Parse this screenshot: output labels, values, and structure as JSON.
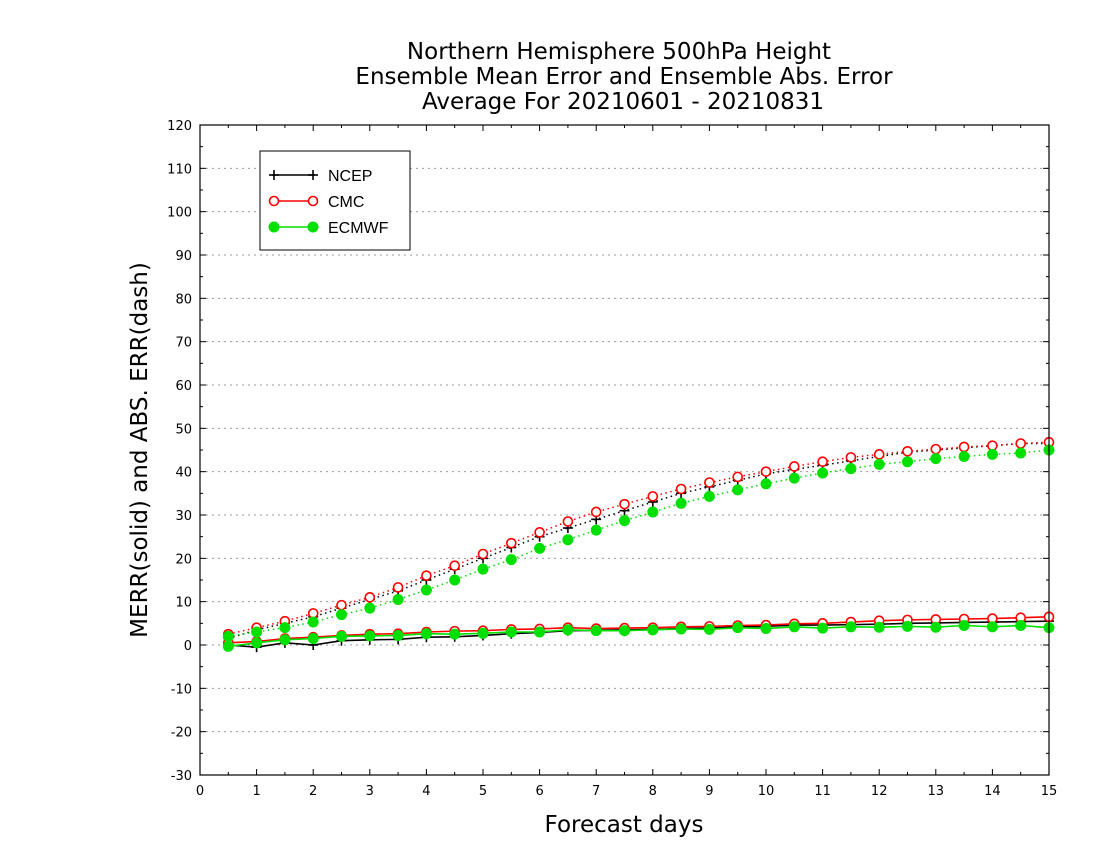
{
  "chart_data": {
    "type": "line",
    "title": [
      "Northern Hemisphere 500hPa Height",
      "Ensemble Mean Error and Ensemble Abs. Error",
      "Average For 20210601 - 20210831"
    ],
    "xlabel": "Forecast days",
    "ylabel": "MERR(solid) and ABS. ERR(dash)",
    "xlim": [
      0,
      15
    ],
    "ylim": [
      -30,
      120
    ],
    "xticks": [
      0,
      1,
      2,
      3,
      4,
      5,
      6,
      7,
      8,
      9,
      10,
      11,
      12,
      13,
      14,
      15
    ],
    "yticks": [
      -30,
      -20,
      -10,
      0,
      10,
      20,
      30,
      40,
      50,
      60,
      70,
      80,
      90,
      100,
      110,
      120
    ],
    "grid": "horizontal dotted",
    "legend_position": "top-left",
    "x": [
      0.5,
      1,
      1.5,
      2,
      2.5,
      3,
      3.5,
      4,
      4.5,
      5,
      5.5,
      6,
      6.5,
      7,
      7.5,
      8,
      8.5,
      9,
      9.5,
      10,
      10.5,
      11,
      11.5,
      12,
      12.5,
      13,
      13.5,
      14,
      14.5,
      15
    ],
    "series": [
      {
        "name": "NCEP",
        "color": "#000000",
        "marker": "plus",
        "merr": [
          0.0,
          -0.5,
          0.5,
          0.0,
          1.0,
          1.2,
          1.3,
          1.8,
          1.9,
          2.2,
          2.6,
          2.9,
          3.3,
          3.4,
          3.5,
          3.6,
          3.8,
          3.9,
          4.2,
          4.3,
          4.6,
          4.6,
          4.7,
          4.8,
          5.0,
          5.1,
          5.2,
          5.3,
          5.4,
          5.5
        ],
        "abs_err": [
          1.5,
          3.5,
          5.0,
          6.5,
          8.5,
          10.5,
          12.5,
          15.0,
          17.5,
          20.0,
          22.5,
          25.0,
          27.0,
          29.0,
          31.0,
          33.0,
          35.0,
          36.5,
          38.0,
          39.5,
          40.5,
          41.5,
          42.5,
          43.5,
          44.5,
          45.0,
          45.5,
          46.0,
          46.5,
          46.5
        ]
      },
      {
        "name": "CMC",
        "color": "#ff0000",
        "marker": "open-circle",
        "merr": [
          0.5,
          0.8,
          1.5,
          1.8,
          2.2,
          2.5,
          2.6,
          3.0,
          3.2,
          3.3,
          3.6,
          3.7,
          4.0,
          3.8,
          3.9,
          4.0,
          4.2,
          4.3,
          4.5,
          4.6,
          4.9,
          5.0,
          5.3,
          5.6,
          5.8,
          5.9,
          6.0,
          6.1,
          6.3,
          6.5
        ],
        "abs_err": [
          2.5,
          4.0,
          5.5,
          7.3,
          9.2,
          11.0,
          13.3,
          16.0,
          18.3,
          21.0,
          23.5,
          26.0,
          28.5,
          30.7,
          32.5,
          34.3,
          36.0,
          37.5,
          38.8,
          40.0,
          41.2,
          42.3,
          43.3,
          44.0,
          44.7,
          45.2,
          45.7,
          46.0,
          46.5,
          46.8
        ]
      },
      {
        "name": "ECMWF",
        "color": "#00e000",
        "marker": "filled-circle",
        "merr": [
          -0.3,
          0.5,
          1.2,
          1.5,
          2.0,
          2.1,
          2.2,
          2.6,
          2.5,
          2.7,
          3.0,
          3.0,
          3.5,
          3.3,
          3.3,
          3.5,
          3.7,
          3.6,
          4.0,
          3.8,
          4.2,
          3.9,
          4.2,
          4.1,
          4.3,
          4.1,
          4.5,
          4.2,
          4.5,
          4.0
        ],
        "abs_err": [
          2.0,
          3.0,
          4.0,
          5.3,
          7.0,
          8.5,
          10.5,
          12.7,
          15.0,
          17.5,
          19.7,
          22.3,
          24.3,
          26.5,
          28.7,
          30.7,
          32.7,
          34.3,
          35.8,
          37.2,
          38.5,
          39.7,
          40.7,
          41.7,
          42.3,
          43.0,
          43.5,
          44.0,
          44.3,
          45.0
        ]
      }
    ]
  }
}
